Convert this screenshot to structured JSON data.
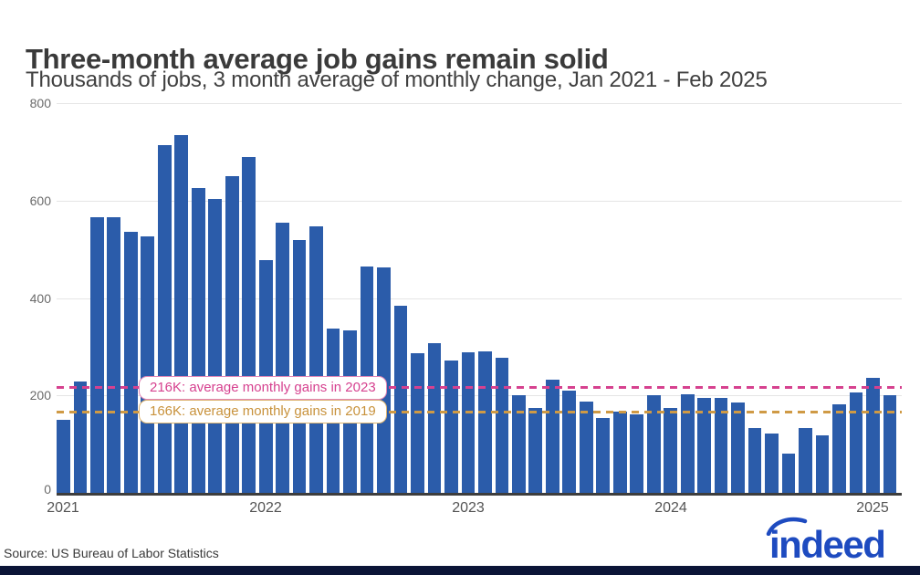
{
  "header": {
    "title": "Three-month average job gains remain solid",
    "subtitle": "Thousands of jobs, 3 month average of monthly change, Jan 2021 - Feb 2025"
  },
  "chart_data": {
    "type": "bar",
    "title": "Three-month average job gains remain solid",
    "subtitle": "Thousands of jobs, 3 month average of monthly change, Jan 2021 - Feb 2025",
    "xlabel": "",
    "ylabel": "Thousands of jobs",
    "ylim": [
      0,
      800
    ],
    "yticks": [
      0,
      200,
      400,
      600,
      800
    ],
    "grid": "horizontal",
    "bar_color": "#2b5caa",
    "categories": [
      "Jan 2021",
      "Feb 2021",
      "Mar 2021",
      "Apr 2021",
      "May 2021",
      "Jun 2021",
      "Jul 2021",
      "Aug 2021",
      "Sep 2021",
      "Oct 2021",
      "Nov 2021",
      "Dec 2021",
      "Jan 2022",
      "Feb 2022",
      "Mar 2022",
      "Apr 2022",
      "May 2022",
      "Jun 2022",
      "Jul 2022",
      "Aug 2022",
      "Sep 2022",
      "Oct 2022",
      "Nov 2022",
      "Dec 2022",
      "Jan 2023",
      "Feb 2023",
      "Mar 2023",
      "Apr 2023",
      "May 2023",
      "Jun 2023",
      "Jul 2023",
      "Aug 2023",
      "Sep 2023",
      "Oct 2023",
      "Nov 2023",
      "Dec 2023",
      "Jan 2024",
      "Feb 2024",
      "Mar 2024",
      "Apr 2024",
      "May 2024",
      "Jun 2024",
      "Jul 2024",
      "Aug 2024",
      "Sep 2024",
      "Oct 2024",
      "Nov 2024",
      "Dec 2024",
      "Jan 2025",
      "Feb 2025"
    ],
    "values": [
      150,
      228,
      565,
      565,
      535,
      527,
      713,
      735,
      625,
      603,
      650,
      689,
      478,
      554,
      519,
      548,
      338,
      334,
      464,
      463,
      385,
      287,
      307,
      272,
      288,
      291,
      277,
      201,
      174,
      232,
      210,
      187,
      153,
      166,
      161,
      200,
      174,
      202,
      194,
      194,
      185,
      133,
      121,
      80,
      133,
      118,
      181,
      207,
      237,
      200
    ],
    "x_year_labels": [
      {
        "label": "2021",
        "month_index": 0
      },
      {
        "label": "2022",
        "month_index": 12
      },
      {
        "label": "2023",
        "month_index": 24
      },
      {
        "label": "2024",
        "month_index": 36
      },
      {
        "label": "2025",
        "month_index": 48
      }
    ],
    "reference_lines": [
      {
        "id": "avg-monthly-gains-2023",
        "value": 216,
        "label": "216K: average monthly gains in 2023",
        "line_color": "#d6418f",
        "text_color": "#d6418f",
        "border_color": "#e287b6"
      },
      {
        "id": "avg-monthly-gains-2019",
        "value": 166,
        "label": "166K: average monthly gains in 2019",
        "line_color": "#cf9a45",
        "text_color": "#c8923c",
        "border_color": "#ddb36e"
      }
    ],
    "legend_position": "none"
  },
  "footer": {
    "source": "Source: US Bureau of Labor Statistics",
    "logo_text": "indeed",
    "logo_color": "#1e4bc0",
    "strip_color": "#0b1437"
  }
}
